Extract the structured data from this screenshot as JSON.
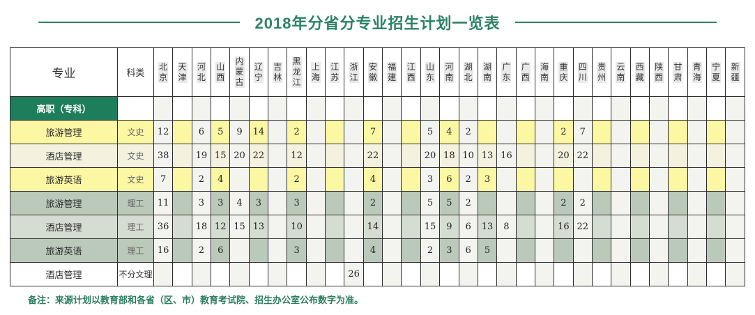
{
  "title": "2018年分省分专业招生计划一览表",
  "table": {
    "major_header": "专业",
    "category_header": "科类",
    "provinces": [
      "北京",
      "天津",
      "河北",
      "山西",
      "内蒙古",
      "辽宁",
      "吉林",
      "黑龙江",
      "上海",
      "江苏",
      "浙江",
      "安徽",
      "福建",
      "江西",
      "山东",
      "河南",
      "湖北",
      "湖南",
      "广东",
      "广西",
      "海南",
      "重庆",
      "四川",
      "贵州",
      "云南",
      "西藏",
      "陕西",
      "甘肃",
      "青海",
      "宁夏",
      "新疆"
    ],
    "section_row": {
      "label": "高职（专科）"
    },
    "rows": [
      {
        "major": "旅游管理",
        "category": "文史",
        "tint": "yellow",
        "values": [
          "12",
          "",
          "6",
          "5",
          "9",
          "14",
          "",
          "2",
          "",
          "",
          "",
          "7",
          "",
          "",
          "5",
          "4",
          "2",
          "",
          "",
          "",
          "",
          "2",
          "7",
          "",
          "",
          "",
          "",
          "",
          "",
          "",
          ""
        ]
      },
      {
        "major": "酒店管理",
        "category": "文史",
        "tint": "beige",
        "values": [
          "38",
          "",
          "19",
          "15",
          "20",
          "22",
          "",
          "12",
          "",
          "",
          "",
          "22",
          "",
          "",
          "20",
          "18",
          "10",
          "13",
          "16",
          "",
          "",
          "20",
          "22",
          "",
          "",
          "",
          "",
          "",
          "",
          "",
          ""
        ]
      },
      {
        "major": "旅游英语",
        "category": "文史",
        "tint": "yellow",
        "values": [
          "7",
          "",
          "2",
          "4",
          "",
          "",
          "",
          "2",
          "",
          "",
          "",
          "4",
          "",
          "",
          "3",
          "6",
          "2",
          "3",
          "",
          "",
          "",
          "",
          "",
          "",
          "",
          "",
          "",
          "",
          "",
          "",
          ""
        ]
      },
      {
        "major": "旅游管理",
        "category": "理工",
        "tint": "sage",
        "values": [
          "11",
          "",
          "3",
          "3",
          "4",
          "3",
          "",
          "3",
          "",
          "",
          "",
          "2",
          "",
          "",
          "5",
          "5",
          "2",
          "",
          "",
          "",
          "",
          "2",
          "2",
          "",
          "",
          "",
          "",
          "",
          "",
          "",
          ""
        ]
      },
      {
        "major": "酒店管理",
        "category": "理工",
        "tint": "sagelight",
        "values": [
          "36",
          "",
          "18",
          "12",
          "15",
          "13",
          "",
          "10",
          "",
          "",
          "",
          "14",
          "",
          "",
          "15",
          "9",
          "6",
          "13",
          "8",
          "",
          "",
          "16",
          "22",
          "",
          "",
          "",
          "",
          "",
          "",
          "",
          ""
        ]
      },
      {
        "major": "旅游英语",
        "category": "理工",
        "tint": "sage",
        "values": [
          "16",
          "",
          "2",
          "6",
          "",
          "",
          "",
          "3",
          "",
          "",
          "",
          "4",
          "",
          "",
          "2",
          "3",
          "6",
          "5",
          "",
          "",
          "",
          "",
          "",
          "",
          "",
          "",
          "",
          "",
          "",
          "",
          ""
        ]
      },
      {
        "major": "酒店管理",
        "category": "不分文理",
        "tint": "plain",
        "values": [
          "",
          "",
          "",
          "",
          "",
          "",
          "",
          "",
          "",
          "",
          "26",
          "",
          "",
          "",
          "",
          "",
          "",
          "",
          "",
          "",
          "",
          "",
          "",
          "",
          "",
          "",
          "",
          "",
          "",
          "",
          ""
        ]
      }
    ]
  },
  "footnote": "备注：来源计划以教育部和各省（区、市）教育考试院、招生办公室公布数字为准。",
  "colors": {
    "title_green": "#2c8264",
    "section_green": "#1e7d5a",
    "row_yellow": "#fcf7a3",
    "row_beige": "#f4f1de",
    "row_sage": "#bac9ba",
    "row_sage_light": "#d5ddd2",
    "neutral_column": "#f3f4f0",
    "header_char_bg": "#e9e9e9",
    "border": "#2d2d2d",
    "footnote_green": "#2a7d5e"
  }
}
